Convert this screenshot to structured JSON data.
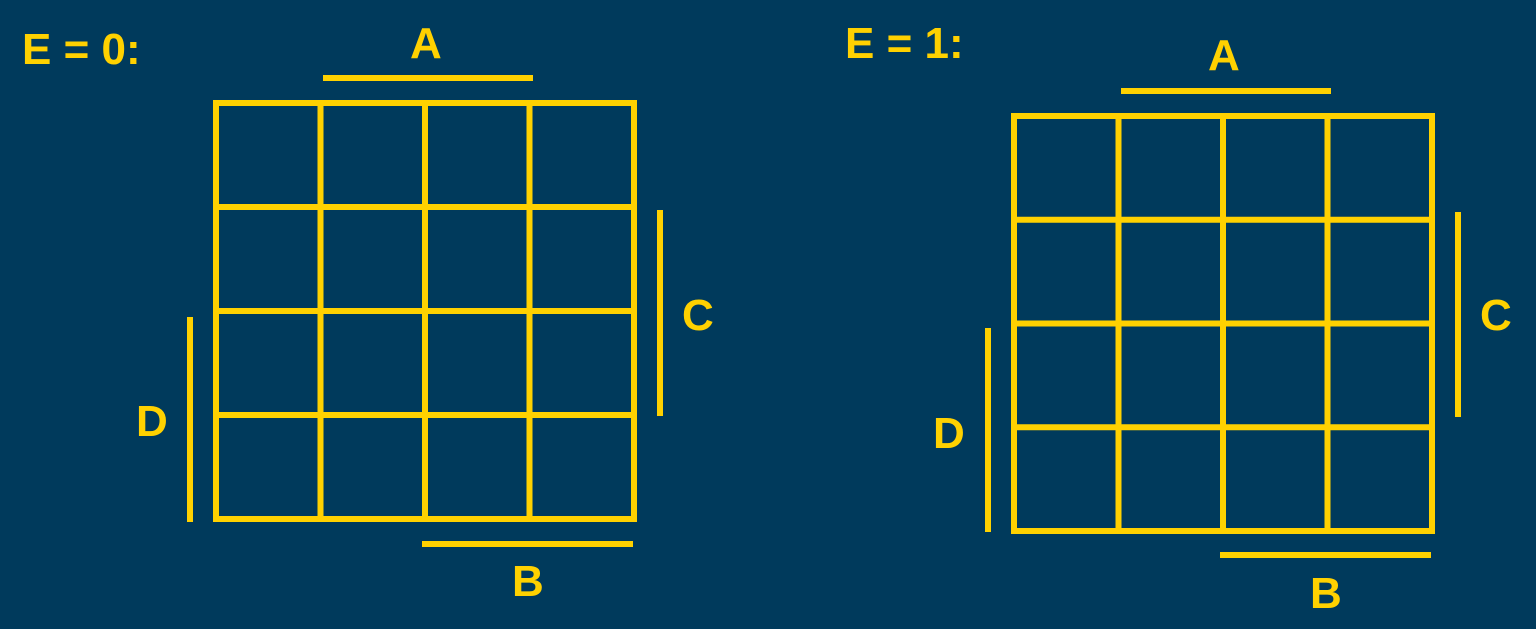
{
  "colors": {
    "background": "#003a5c",
    "lines": "#ffd100",
    "text": "#ffd100"
  },
  "maps": [
    {
      "title": "E = 0:",
      "rows": 4,
      "cols": 4,
      "labels": {
        "a": "A",
        "b": "B",
        "c": "C",
        "d": "D"
      }
    },
    {
      "title": "E = 1:",
      "rows": 4,
      "cols": 4,
      "labels": {
        "a": "A",
        "b": "B",
        "c": "C",
        "d": "D"
      }
    }
  ]
}
